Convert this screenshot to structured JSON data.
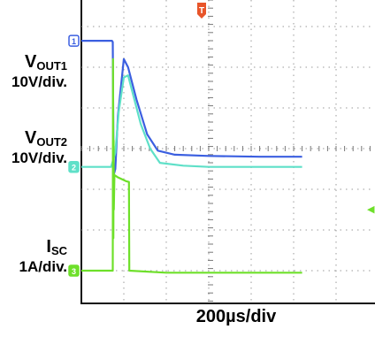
{
  "chart_data": {
    "type": "line",
    "x_scale": "200µs/div",
    "trigger_marker": "T",
    "trigger_level_marker": "◀",
    "channels": [
      {
        "id": "1",
        "name_main": "V",
        "name_sub": "OUT1",
        "scale": "10V/div.",
        "color": "#3b5fe0",
        "baseline_div": 2.65,
        "points": [
          [
            0,
            2.65
          ],
          [
            0.72,
            2.65
          ],
          [
            0.74,
            2.62
          ],
          [
            0.76,
            -0.65
          ],
          [
            0.8,
            -0.5
          ],
          [
            0.86,
            0.8
          ],
          [
            1.0,
            2.2
          ],
          [
            1.1,
            2.0
          ],
          [
            1.3,
            1.2
          ],
          [
            1.55,
            0.35
          ],
          [
            1.8,
            -0.05
          ],
          [
            2.2,
            -0.15
          ],
          [
            3.0,
            -0.18
          ],
          [
            4.2,
            -0.2
          ],
          [
            5.2,
            -0.2
          ]
        ]
      },
      {
        "id": "2",
        "name_main": "V",
        "name_sub": "OUT2",
        "scale": "10V/div.",
        "color": "#5fe0c8",
        "baseline_div": -0.45,
        "points": [
          [
            0,
            -0.45
          ],
          [
            0.7,
            -0.45
          ],
          [
            0.8,
            -0.1
          ],
          [
            0.88,
            0.9
          ],
          [
            1.0,
            1.75
          ],
          [
            1.1,
            1.8
          ],
          [
            1.2,
            1.4
          ],
          [
            1.4,
            0.6
          ],
          [
            1.62,
            0.0
          ],
          [
            1.85,
            -0.35
          ],
          [
            2.4,
            -0.42
          ],
          [
            3.0,
            -0.45
          ],
          [
            5.2,
            -0.45
          ]
        ]
      },
      {
        "id": "3",
        "name_main": "I",
        "name_sub": "SC",
        "scale": "1A/div.",
        "color": "#6ee02a",
        "baseline_div": -3.0,
        "points": [
          [
            0,
            -3.0
          ],
          [
            0.72,
            -3.0
          ],
          [
            0.74,
            -3.0
          ],
          [
            0.745,
            2.2
          ],
          [
            0.755,
            -2.2
          ],
          [
            0.76,
            0.2
          ],
          [
            0.765,
            -1.5
          ],
          [
            0.78,
            -0.65
          ],
          [
            0.85,
            -0.7
          ],
          [
            0.95,
            -0.75
          ],
          [
            1.05,
            -0.8
          ],
          [
            1.12,
            -0.82
          ],
          [
            1.13,
            -3.0
          ],
          [
            2.0,
            -3.05
          ],
          [
            5.2,
            -3.05
          ]
        ]
      }
    ]
  }
}
